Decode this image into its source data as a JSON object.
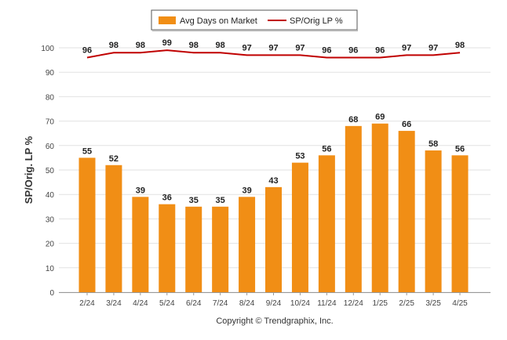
{
  "chart_data": {
    "type": "bar",
    "categories": [
      "2/24",
      "3/24",
      "4/24",
      "5/24",
      "6/24",
      "7/24",
      "8/24",
      "9/24",
      "10/24",
      "11/24",
      "12/24",
      "1/25",
      "2/25",
      "3/25",
      "4/25"
    ],
    "series": [
      {
        "name": "Avg Days on Market",
        "type": "bar",
        "color": "#f18e15",
        "values": [
          55,
          52,
          39,
          36,
          35,
          35,
          39,
          43,
          53,
          56,
          68,
          69,
          66,
          58,
          56
        ]
      },
      {
        "name": "SP/Orig LP %",
        "type": "line",
        "color": "#c00000",
        "values": [
          96,
          98,
          98,
          99,
          98,
          98,
          97,
          97,
          97,
          96,
          96,
          96,
          97,
          97,
          98
        ]
      }
    ],
    "ylabel": "SP/Orig. LP %",
    "yticks": [
      0,
      10,
      20,
      30,
      40,
      50,
      60,
      70,
      80,
      90,
      100
    ],
    "ylim": [
      0,
      100
    ],
    "grid": true,
    "legend_position": "top-center"
  },
  "footer": {
    "copyright": "Copyright © Trendgraphix, Inc."
  }
}
